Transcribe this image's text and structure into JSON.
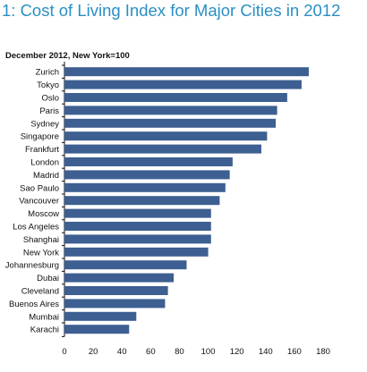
{
  "chart_data": {
    "type": "bar",
    "orientation": "horizontal",
    "title": "1: Cost of Living Index for Major Cities in 2012",
    "subtitle": "December 2012, New York=100",
    "categories": [
      "Zurich",
      "Tokyo",
      "Oslo",
      "Paris",
      "Sydney",
      "Singapore",
      "Frankfurt",
      "London",
      "Madrid",
      "Sao Paulo",
      "Vancouver",
      "Moscow",
      "Los Angeles",
      "Shanghai",
      "New York",
      "Johannesburg",
      "Dubai",
      "Cleveland",
      "Buenos Aires",
      "Mumbai",
      "Karachi"
    ],
    "values": [
      170,
      165,
      155,
      148,
      147,
      141,
      137,
      117,
      115,
      112,
      108,
      102,
      102,
      102,
      100,
      85,
      76,
      72,
      70,
      50,
      45
    ],
    "xlim": [
      0,
      180
    ],
    "xticks": [
      0,
      20,
      40,
      60,
      80,
      100,
      120,
      140,
      160,
      180
    ],
    "grid": false,
    "legend": "none",
    "bar_color": "#3d5f91"
  }
}
